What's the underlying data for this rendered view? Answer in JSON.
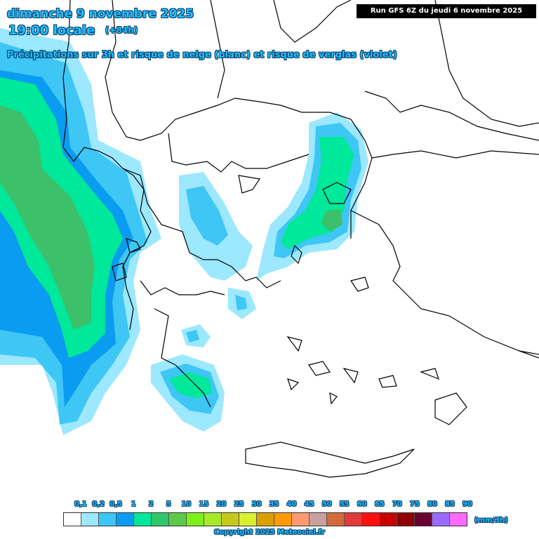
{
  "header": {
    "date": "dimanche 9 novembre 2025",
    "time": "19:00 locale",
    "lead": "(+84h)",
    "description": "Précipitations sur 3h et risque de neige (blanc) et risque de verglas (violet)",
    "run": "Run GFS 6Z du jeudi 6 novembre 2025"
  },
  "legend": {
    "unit": "(mm/3h)",
    "ticks": [
      "0,1",
      "0,2",
      "0,5",
      "1",
      "2",
      "5",
      "10",
      "15",
      "20",
      "25",
      "30",
      "35",
      "40",
      "45",
      "50",
      "55",
      "60",
      "65",
      "70",
      "75",
      "80",
      "85",
      "90"
    ],
    "colors": [
      "#ffffff",
      "#9be8ff",
      "#3ec6f5",
      "#0a9cf0",
      "#00e89a",
      "#2ec86a",
      "#5bc84a",
      "#7cf01a",
      "#a8e82a",
      "#c8c818",
      "#d8f030",
      "#d8a000",
      "#ff9a00",
      "#ff9a70",
      "#c8a0a0",
      "#d26a3a",
      "#e03a3a",
      "#ff1010",
      "#c80000",
      "#8c0000",
      "#6a0030",
      "#9a6aff",
      "#ff6aff"
    ]
  },
  "footer": {
    "copyright": "Copyright 2025 Meteociel.fr"
  },
  "precip_colors": {
    "light": "#9be8ff",
    "medium": "#3ec6f5",
    "heavy": "#0a9cf0",
    "green_light": "#00e89a",
    "green": "#3cc06a"
  }
}
